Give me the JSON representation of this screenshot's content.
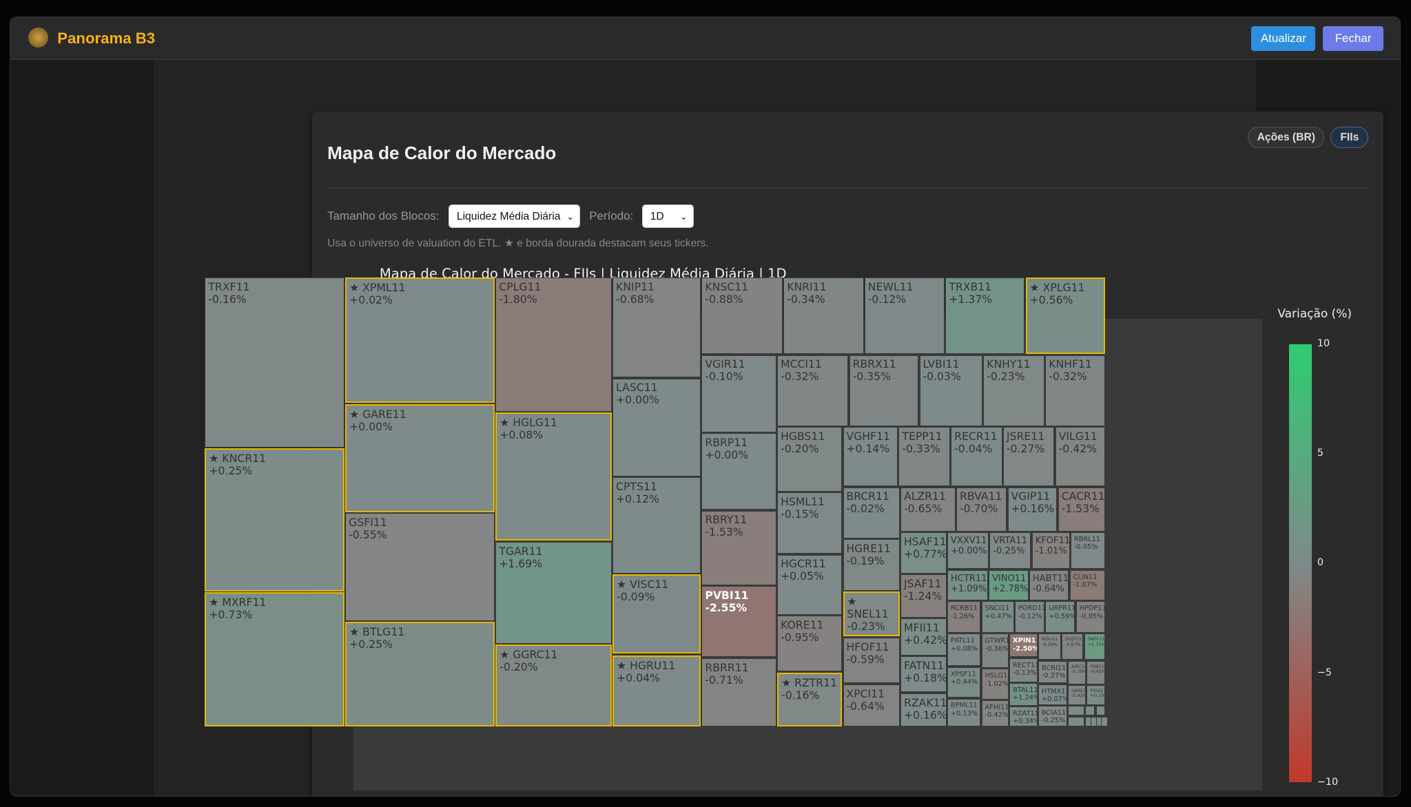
{
  "app": {
    "title": "Panorama B3",
    "buttons": {
      "refresh": "Atualizar",
      "close": "Fechar"
    },
    "colors": {
      "brand": "#f5b21c",
      "refresh": "#2d8fe0",
      "close": "#6c7be8"
    }
  },
  "page": {
    "title": "Mapa de Calor do Mercado",
    "toggles": [
      {
        "label": "Ações (BR)",
        "active": false
      },
      {
        "label": "FIIs",
        "active": true
      }
    ],
    "controls": {
      "size_label": "Tamanho dos Blocos:",
      "size_value": "Liquidez Média Diária",
      "period_label": "Período:",
      "period_value": "1D"
    },
    "note": "Usa o universo de valuation do ETL. ★ e borda dourada destacam seus tickers."
  },
  "chart_data": {
    "type": "heatmap",
    "title": "Mapa de Calor do Mercado - FIIs | Liquidez Média Diária | 1D",
    "colorbar": {
      "title": "Variação (%)",
      "range": [
        -10,
        10
      ],
      "ticks": [
        "10",
        "5",
        "0",
        "−5",
        "−10"
      ],
      "colors": {
        "max": "#2ecc71",
        "mid": "#7f8a8a",
        "min": "#c0392b"
      }
    },
    "cells": [
      {
        "t": "TRXF11",
        "v": "-0.16%",
        "s": false
      },
      {
        "t": "KNCR11",
        "v": "+0.25%",
        "s": true
      },
      {
        "t": "MXRF11",
        "v": "+0.73%",
        "s": true
      },
      {
        "t": "XPML11",
        "v": "+0.02%",
        "s": true
      },
      {
        "t": "GARE11",
        "v": "+0.00%",
        "s": true
      },
      {
        "t": "GSFI11",
        "v": "-0.55%",
        "s": false
      },
      {
        "t": "BTLG11",
        "v": "+0.25%",
        "s": true
      },
      {
        "t": "CPLG11",
        "v": "-1.80%",
        "s": false
      },
      {
        "t": "HGLG11",
        "v": "+0.08%",
        "s": true
      },
      {
        "t": "TGAR11",
        "v": "+1.69%",
        "s": false
      },
      {
        "t": "GGRC11",
        "v": "-0.20%",
        "s": true
      },
      {
        "t": "KNIP11",
        "v": "-0.68%",
        "s": false
      },
      {
        "t": "LASC11",
        "v": "+0.00%",
        "s": false
      },
      {
        "t": "CPTS11",
        "v": "+0.12%",
        "s": false
      },
      {
        "t": "VISC11",
        "v": "-0.09%",
        "s": true
      },
      {
        "t": "HGRU11",
        "v": "+0.04%",
        "s": true
      },
      {
        "t": "KNSC11",
        "v": "-0.88%",
        "s": false
      },
      {
        "t": "KNRI11",
        "v": "-0.34%",
        "s": false
      },
      {
        "t": "NEWL11",
        "v": "-0.12%",
        "s": false
      },
      {
        "t": "TRXB11",
        "v": "+1.37%",
        "s": false
      },
      {
        "t": "XPLG11",
        "v": "+0.56%",
        "s": true
      },
      {
        "t": "VGIR11",
        "v": "-0.10%",
        "s": false
      },
      {
        "t": "RBRP11",
        "v": "+0.00%",
        "s": false
      },
      {
        "t": "RBRY11",
        "v": "-1.53%",
        "s": false
      },
      {
        "t": "PVBI11",
        "v": "-2.55%",
        "s": false
      },
      {
        "t": "RBRR11",
        "v": "-0.71%",
        "s": false
      },
      {
        "t": "MCCI11",
        "v": "-0.32%",
        "s": false
      },
      {
        "t": "RBRX11",
        "v": "-0.35%",
        "s": false
      },
      {
        "t": "LVBI11",
        "v": "-0.03%",
        "s": false
      },
      {
        "t": "KNHY11",
        "v": "-0.23%",
        "s": false
      },
      {
        "t": "KNHF11",
        "v": "-0.32%",
        "s": false
      },
      {
        "t": "HGBS11",
        "v": "-0.20%",
        "s": false
      },
      {
        "t": "HSML11",
        "v": "-0.15%",
        "s": false
      },
      {
        "t": "HGCR11",
        "v": "+0.05%",
        "s": false
      },
      {
        "t": "KORE11",
        "v": "-0.95%",
        "s": false
      },
      {
        "t": "RZTR11",
        "v": "-0.16%",
        "s": true
      },
      {
        "t": "VGHF11",
        "v": "+0.14%",
        "s": false
      },
      {
        "t": "TEPP11",
        "v": "-0.33%",
        "s": false
      },
      {
        "t": "RECR11",
        "v": "-0.04%",
        "s": false
      },
      {
        "t": "JSRE11",
        "v": "-0.27%",
        "s": false
      },
      {
        "t": "VILG11",
        "v": "-0.42%",
        "s": false
      },
      {
        "t": "BRCR11",
        "v": "-0.02%",
        "s": false
      },
      {
        "t": "HGRE11",
        "v": "-0.19%",
        "s": false
      },
      {
        "t": "SNEL11",
        "v": "-0.23%",
        "s": true
      },
      {
        "t": "HFOF11",
        "v": "-0.59%",
        "s": false
      },
      {
        "t": "XPCI11",
        "v": "-0.64%",
        "s": false
      },
      {
        "t": "ALZR11",
        "v": "-0.65%",
        "s": false
      },
      {
        "t": "RBVA11",
        "v": "-0.70%",
        "s": false
      },
      {
        "t": "VGIP11",
        "v": "+0.16%",
        "s": false
      },
      {
        "t": "CACR11",
        "v": "-1.53%",
        "s": false
      },
      {
        "t": "HSAF11",
        "v": "+0.77%",
        "s": false
      },
      {
        "t": "JSAF11",
        "v": "-1.24%",
        "s": false
      },
      {
        "t": "MFII11",
        "v": "+0.42%",
        "s": false
      },
      {
        "t": "FATN11",
        "v": "+0.18%",
        "s": false
      },
      {
        "t": "RZAK11",
        "v": "+0.16%",
        "s": false
      },
      {
        "t": "VXXV11",
        "v": "+0.00%",
        "s": false
      },
      {
        "t": "VRTA11",
        "v": "-0.25%",
        "s": false
      },
      {
        "t": "KFOF11",
        "v": "-1.01%",
        "s": false
      },
      {
        "t": "RBRL11",
        "v": "-0.05%",
        "s": false
      },
      {
        "t": "HCTR11",
        "v": "+1.09%",
        "s": false
      },
      {
        "t": "VINO11",
        "v": "+2.78%",
        "s": false
      },
      {
        "t": "HABT11",
        "v": "-0.64%",
        "s": false
      },
      {
        "t": "CLIN11",
        "v": "-1.87%",
        "s": false
      },
      {
        "t": "RCRB11",
        "v": "-1.26%",
        "s": false
      },
      {
        "t": "PATL11",
        "v": "+0.08%",
        "s": false
      },
      {
        "t": "XPSF11",
        "v": "+0.44%",
        "s": false
      },
      {
        "t": "BPML11",
        "v": "+0.13%",
        "s": false
      },
      {
        "t": "SNCI11",
        "v": "+0.47%",
        "s": false
      },
      {
        "t": "PORD11",
        "v": "-0.12%",
        "s": false
      },
      {
        "t": "URPR11",
        "v": "+0.59%",
        "s": false
      },
      {
        "t": "HPDP11",
        "v": "-0.85%",
        "s": false
      },
      {
        "t": "GTWR11",
        "v": "-0.36%",
        "s": false
      },
      {
        "t": "HSLG11",
        "v": "-1.02%",
        "s": false
      },
      {
        "t": "AFHI11",
        "v": "-0.42%",
        "s": false
      },
      {
        "t": "XPIN11",
        "v": "-2.50%",
        "s": false
      },
      {
        "t": "RECT11",
        "v": "-0.13%",
        "s": false
      },
      {
        "t": "BTAL11",
        "v": "+1.24%",
        "s": false
      },
      {
        "t": "RZAT11",
        "v": "+0.34%",
        "s": false
      },
      {
        "t": "KISU11",
        "v": "-0.29%",
        "s": false
      },
      {
        "t": "OUJP11",
        "v": "-0.67%",
        "s": false
      },
      {
        "t": "SNFF11",
        "v": "+2.71%",
        "s": false
      },
      {
        "t": "BCRI11",
        "v": "-0.27%",
        "s": false
      },
      {
        "t": "AIEC11",
        "v": "-0.29%",
        "s": false
      },
      {
        "t": "FIIB11",
        "v": "-0.62%",
        "s": false
      },
      {
        "t": "HTMX11",
        "v": "+0.07%",
        "s": false
      },
      {
        "t": "SARE11",
        "v": "-0.42%",
        "s": false
      },
      {
        "t": "FIGS11",
        "v": "+0.33%",
        "s": false
      },
      {
        "t": "BCIA11",
        "v": "-0.25%",
        "s": false
      }
    ]
  }
}
